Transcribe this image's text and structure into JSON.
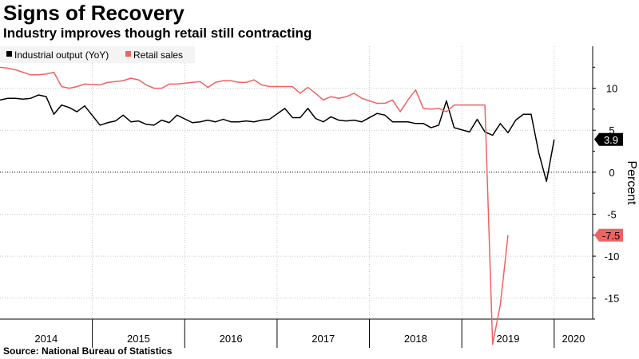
{
  "header": {
    "title": "Signs of Recovery",
    "subtitle": "Industry improves though retail still contracting"
  },
  "footer": {
    "source": "Source: National Bureau of Statistics"
  },
  "chart_data": {
    "type": "line",
    "title": "Signs of Recovery",
    "subtitle": "Industry improves though retail still contracting",
    "ylabel": "Percent",
    "xlabel": "",
    "ylim": [
      -17.5,
      15
    ],
    "xlim": [
      "2014-01",
      "2020-06"
    ],
    "grid": true,
    "legend": "top-left",
    "y_ticks": [
      -15,
      -10,
      -5,
      0,
      5,
      10
    ],
    "x_year_labels": [
      "2014",
      "2015",
      "2016",
      "2017",
      "2018",
      "2019",
      "2020"
    ],
    "series": [
      {
        "name": "Industrial output (YoY)",
        "color": "#000000",
        "last_value_label": "3.9",
        "points": [
          [
            "2014-01",
            8.6
          ],
          [
            "2014-02",
            8.8
          ],
          [
            "2014-03",
            8.8
          ],
          [
            "2014-04",
            8.7
          ],
          [
            "2014-05",
            8.8
          ],
          [
            "2014-06",
            9.2
          ],
          [
            "2014-07",
            9.0
          ],
          [
            "2014-08",
            6.9
          ],
          [
            "2014-09",
            8.0
          ],
          [
            "2014-10",
            7.7
          ],
          [
            "2014-11",
            7.2
          ],
          [
            "2014-12",
            7.9
          ],
          [
            "2015-02",
            5.6
          ],
          [
            "2015-03",
            5.9
          ],
          [
            "2015-04",
            6.1
          ],
          [
            "2015-05",
            6.8
          ],
          [
            "2015-06",
            6.0
          ],
          [
            "2015-07",
            6.1
          ],
          [
            "2015-08",
            5.7
          ],
          [
            "2015-09",
            5.6
          ],
          [
            "2015-10",
            6.2
          ],
          [
            "2015-11",
            5.9
          ],
          [
            "2015-12",
            6.8
          ],
          [
            "2016-02",
            5.9
          ],
          [
            "2016-03",
            6.0
          ],
          [
            "2016-04",
            6.2
          ],
          [
            "2016-05",
            6.0
          ],
          [
            "2016-06",
            6.3
          ],
          [
            "2016-07",
            6.0
          ],
          [
            "2016-08",
            6.0
          ],
          [
            "2016-09",
            6.1
          ],
          [
            "2016-10",
            6.0
          ],
          [
            "2016-11",
            6.2
          ],
          [
            "2016-12",
            6.3
          ],
          [
            "2017-02",
            7.6
          ],
          [
            "2017-03",
            6.5
          ],
          [
            "2017-04",
            6.5
          ],
          [
            "2017-05",
            7.6
          ],
          [
            "2017-06",
            6.4
          ],
          [
            "2017-07",
            6.0
          ],
          [
            "2017-08",
            6.6
          ],
          [
            "2017-09",
            6.2
          ],
          [
            "2017-10",
            6.1
          ],
          [
            "2017-11",
            6.2
          ],
          [
            "2017-12",
            6.0
          ],
          [
            "2018-02",
            7.0
          ],
          [
            "2018-03",
            6.8
          ],
          [
            "2018-04",
            6.0
          ],
          [
            "2018-05",
            6.0
          ],
          [
            "2018-06",
            6.0
          ],
          [
            "2018-07",
            5.8
          ],
          [
            "2018-08",
            5.8
          ],
          [
            "2018-09",
            5.3
          ],
          [
            "2018-10",
            5.6
          ],
          [
            "2018-11",
            8.5
          ],
          [
            "2018-12",
            5.3
          ],
          [
            "2019-02",
            4.8
          ],
          [
            "2019-03",
            6.3
          ],
          [
            "2019-04",
            4.8
          ],
          [
            "2019-05",
            4.4
          ],
          [
            "2019-06",
            5.8
          ],
          [
            "2019-07",
            4.7
          ],
          [
            "2019-08",
            6.2
          ],
          [
            "2019-09",
            6.9
          ],
          [
            "2019-10",
            6.9
          ],
          [
            "2019-11",
            2.3
          ],
          [
            "2019-12",
            -1.1
          ],
          [
            "2020-01",
            3.9
          ]
        ]
      },
      {
        "name": "Retail sales",
        "color": "#f06262",
        "last_value_label": "-7.5",
        "points": [
          [
            "2014-01",
            12.5
          ],
          [
            "2014-02",
            12.4
          ],
          [
            "2014-03",
            12.2
          ],
          [
            "2014-04",
            11.9
          ],
          [
            "2014-05",
            11.6
          ],
          [
            "2014-06",
            11.6
          ],
          [
            "2014-07",
            11.7
          ],
          [
            "2014-08",
            11.9
          ],
          [
            "2014-09",
            10.2
          ],
          [
            "2014-10",
            10.0
          ],
          [
            "2014-11",
            10.2
          ],
          [
            "2014-12",
            10.5
          ],
          [
            "2015-02",
            10.4
          ],
          [
            "2015-03",
            10.7
          ],
          [
            "2015-04",
            10.8
          ],
          [
            "2015-05",
            10.9
          ],
          [
            "2015-06",
            11.2
          ],
          [
            "2015-07",
            11.0
          ],
          [
            "2015-08",
            10.4
          ],
          [
            "2015-09",
            10.0
          ],
          [
            "2015-10",
            10.0
          ],
          [
            "2015-11",
            10.5
          ],
          [
            "2015-12",
            10.5
          ],
          [
            "2016-02",
            10.7
          ],
          [
            "2016-03",
            10.8
          ],
          [
            "2016-04",
            10.1
          ],
          [
            "2016-05",
            10.7
          ],
          [
            "2016-06",
            10.9
          ],
          [
            "2016-07",
            10.9
          ],
          [
            "2016-08",
            10.7
          ],
          [
            "2016-09",
            10.7
          ],
          [
            "2016-10",
            11.0
          ],
          [
            "2016-11",
            10.4
          ],
          [
            "2016-12",
            10.2
          ],
          [
            "2017-02",
            10.2
          ],
          [
            "2017-03",
            10.2
          ],
          [
            "2017-04",
            9.4
          ],
          [
            "2017-05",
            10.1
          ],
          [
            "2017-06",
            9.4
          ],
          [
            "2017-07",
            8.6
          ],
          [
            "2017-08",
            9.0
          ],
          [
            "2017-09",
            8.8
          ],
          [
            "2017-10",
            9.0
          ],
          [
            "2017-11",
            9.4
          ],
          [
            "2017-12",
            8.8
          ],
          [
            "2018-02",
            8.2
          ],
          [
            "2018-03",
            8.2
          ],
          [
            "2018-04",
            8.6
          ],
          [
            "2018-05",
            7.2
          ],
          [
            "2018-06",
            8.6
          ],
          [
            "2018-07",
            9.8
          ],
          [
            "2018-08",
            7.6
          ],
          [
            "2018-09",
            7.5
          ],
          [
            "2018-10",
            7.6
          ],
          [
            "2018-11",
            7.2
          ],
          [
            "2018-12",
            8.0
          ],
          [
            "2019-02",
            8.0
          ],
          [
            "2019-03",
            8.0
          ],
          [
            "2019-04",
            8.0
          ],
          [
            "2019-05",
            -20.5
          ],
          [
            "2019-06",
            -15.8
          ],
          [
            "2019-07",
            -7.5
          ]
        ]
      }
    ]
  }
}
